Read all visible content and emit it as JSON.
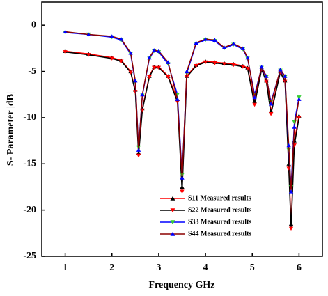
{
  "chart_data": {
    "type": "line",
    "xlabel": "Frequency GHz",
    "ylabel": "S- Parameter |dB|",
    "xlim": [
      0.5,
      6.5
    ],
    "xticks": [
      1,
      2,
      3,
      4,
      5,
      6
    ],
    "ylim": [
      -25,
      2.5
    ],
    "yticks": [
      -25,
      -20,
      -15,
      -10,
      -5,
      0
    ],
    "legend": "lower center",
    "x": [
      1,
      1.5,
      2,
      2.2,
      2.4,
      2.5,
      2.57,
      2.65,
      2.8,
      2.9,
      3,
      3.2,
      3.4,
      3.5,
      3.6,
      3.8,
      4,
      4.2,
      4.4,
      4.6,
      4.8,
      4.9,
      5.05,
      5.2,
      5.3,
      5.4,
      5.6,
      5.7,
      5.78,
      5.83,
      5.9,
      6
    ],
    "series": [
      {
        "name": "S11 Measured results",
        "color": "#ff0000",
        "marker_color": "#000000",
        "marker": "triangle-up",
        "values": [
          -2.8,
          -3.1,
          -3.5,
          -3.8,
          -5,
          -7,
          -13.8,
          -9,
          -5.5,
          -4.5,
          -4.5,
          -5.5,
          -8,
          -17.5,
          -5.5,
          -4.3,
          -3.9,
          -4.0,
          -4.1,
          -4.2,
          -4.4,
          -4.6,
          -8.2,
          -4.7,
          -6.0,
          -9.3,
          -5.0,
          -6.0,
          -15,
          -21.5,
          -12.5,
          -9.8
        ]
      },
      {
        "name": "S22 Measured results",
        "color": "#000000",
        "marker_color": "#ff0000",
        "marker": "triangle-down",
        "values": [
          -2.9,
          -3.2,
          -3.6,
          -3.9,
          -5.1,
          -7.2,
          -14.1,
          -9.2,
          -5.6,
          -4.6,
          -4.6,
          -5.6,
          -8.3,
          -18,
          -5.6,
          -4.4,
          -4.0,
          -4.1,
          -4.2,
          -4.3,
          -4.5,
          -4.7,
          -8.6,
          -4.8,
          -6.1,
          -9.6,
          -5.1,
          -6.1,
          -15.5,
          -22,
          -13,
          -10
        ]
      },
      {
        "name": "S33 Measured results",
        "color": "#0000ff",
        "marker_color": "#33cc33",
        "marker": "triangle-down",
        "values": [
          -0.8,
          -1.0,
          -1.3,
          -1.6,
          -3.1,
          -6.2,
          -13.2,
          -7.6,
          -3.6,
          -2.8,
          -2.9,
          -4.2,
          -7.5,
          -16.2,
          -5.2,
          -2.0,
          -1.6,
          -1.7,
          -2.5,
          -2.1,
          -2.6,
          -3.6,
          -7.5,
          -4.6,
          -5.6,
          -8.3,
          -4.9,
          -5.6,
          -13.5,
          -17.5,
          -10.5,
          -7.8
        ]
      },
      {
        "name": "S44 Measured results",
        "color": "#8b0000",
        "marker_color": "#0000ff",
        "marker": "triangle-up",
        "values": [
          -0.7,
          -1.0,
          -1.2,
          -1.5,
          -3,
          -6,
          -13.5,
          -7.5,
          -3.5,
          -2.7,
          -2.8,
          -4,
          -8,
          -16.5,
          -5,
          -1.9,
          -1.5,
          -1.6,
          -2.4,
          -2.0,
          -2.5,
          -3.5,
          -7.8,
          -4.5,
          -5.5,
          -8.5,
          -4.8,
          -5.5,
          -13,
          -18,
          -11,
          -8.0
        ]
      }
    ]
  }
}
